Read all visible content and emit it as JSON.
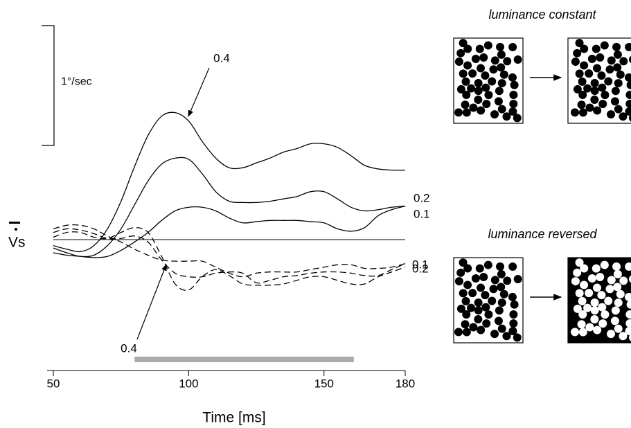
{
  "chart_data": {
    "type": "line",
    "x_label": "Time [ms]",
    "y_label": "Vs",
    "x": [
      50,
      55,
      60,
      65,
      70,
      75,
      80,
      85,
      90,
      95,
      100,
      105,
      110,
      115,
      120,
      125,
      130,
      135,
      140,
      145,
      150,
      155,
      160,
      165,
      170,
      175,
      180
    ],
    "xlim": [
      50,
      180
    ],
    "xticks": [
      50,
      100,
      150,
      180
    ],
    "ylim": [
      -0.8,
      1.8
    ],
    "zero_line": true,
    "scale_bar": {
      "label": "1°/sec",
      "value": 1
    },
    "stimulus_bar": {
      "start": 80,
      "end": 161,
      "color": "#aaaaaa"
    },
    "series": [
      {
        "name": "0.4",
        "color": "#000000",
        "dashed": false,
        "values": [
          -0.05,
          -0.08,
          -0.1,
          -0.05,
          0.09,
          0.32,
          0.61,
          0.87,
          1.03,
          1.06,
          0.99,
          0.82,
          0.68,
          0.6,
          0.6,
          0.64,
          0.68,
          0.73,
          0.76,
          0.8,
          0.8,
          0.77,
          0.7,
          0.62,
          0.59,
          0.58,
          0.58
        ]
      },
      {
        "name": "0.2",
        "color": "#000000",
        "dashed": false,
        "values": [
          -0.07,
          -0.11,
          -0.14,
          -0.13,
          -0.05,
          0.09,
          0.29,
          0.49,
          0.63,
          0.68,
          0.67,
          0.55,
          0.4,
          0.32,
          0.31,
          0.31,
          0.32,
          0.34,
          0.36,
          0.4,
          0.4,
          0.34,
          0.27,
          0.24,
          0.25,
          0.27,
          0.28
        ]
      },
      {
        "name": "0.1",
        "color": "#000000",
        "dashed": false,
        "values": [
          -0.11,
          -0.13,
          -0.14,
          -0.15,
          -0.14,
          -0.09,
          -0.02,
          0.06,
          0.16,
          0.24,
          0.27,
          0.27,
          0.24,
          0.18,
          0.14,
          0.15,
          0.16,
          0.16,
          0.16,
          0.15,
          0.14,
          0.09,
          0.07,
          0.1,
          0.2,
          0.25,
          0.28
        ]
      },
      {
        "name": "0.1",
        "color": "#000000",
        "dashed": true,
        "values": [
          0.09,
          0.12,
          0.12,
          0.09,
          0.03,
          -0.02,
          -0.08,
          -0.13,
          -0.17,
          -0.18,
          -0.18,
          -0.18,
          -0.23,
          -0.28,
          -0.31,
          -0.28,
          -0.27,
          -0.27,
          -0.27,
          -0.25,
          -0.23,
          -0.21,
          -0.21,
          -0.24,
          -0.24,
          -0.23,
          -0.2
        ]
      },
      {
        "name": "0.2",
        "color": "#000000",
        "dashed": true,
        "values": [
          0.06,
          0.09,
          0.08,
          0.05,
          0.01,
          0.01,
          0.03,
          -0.02,
          -0.17,
          -0.28,
          -0.31,
          -0.31,
          -0.28,
          -0.27,
          -0.28,
          -0.36,
          -0.34,
          -0.31,
          -0.3,
          -0.28,
          -0.27,
          -0.27,
          -0.28,
          -0.3,
          -0.3,
          -0.25,
          -0.2
        ]
      },
      {
        "name": "0.4",
        "color": "#000000",
        "dashed": true,
        "values": [
          0.02,
          0.06,
          0.06,
          0.02,
          0.01,
          0.06,
          0.1,
          0.06,
          -0.14,
          -0.37,
          -0.42,
          -0.31,
          -0.25,
          -0.3,
          -0.37,
          -0.38,
          -0.38,
          -0.37,
          -0.34,
          -0.31,
          -0.31,
          -0.34,
          -0.37,
          -0.37,
          -0.31,
          -0.27,
          -0.23
        ]
      }
    ],
    "panels": [
      {
        "title": "luminance constant",
        "reversed": false
      },
      {
        "title": "luminance reversed",
        "reversed": true
      }
    ]
  }
}
